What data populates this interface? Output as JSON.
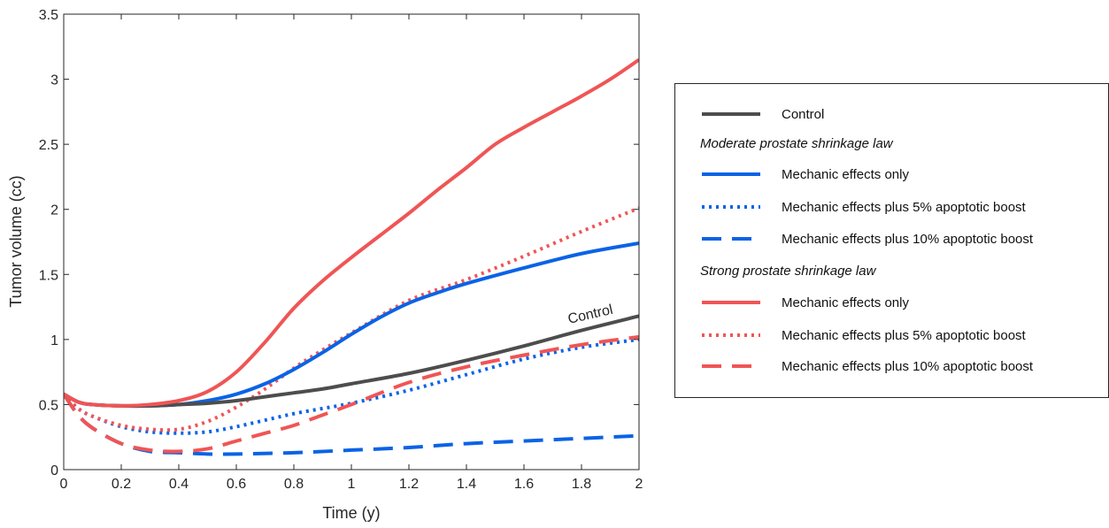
{
  "colors": {
    "control": "#4d4d4d",
    "moderate": "#0a63e6",
    "strong": "#f05555",
    "axis": "#262626"
  },
  "chart_data": {
    "type": "line",
    "xlabel": "Time (y)",
    "ylabel": "Tumor volume (cc)",
    "xlim": [
      0,
      2
    ],
    "ylim": [
      0,
      3.5
    ],
    "xticks": [
      "0",
      "0.2",
      "0.4",
      "0.6",
      "0.8",
      "1",
      "1.2",
      "1.4",
      "1.6",
      "1.8",
      "2"
    ],
    "yticks": [
      "0",
      "0.5",
      "1",
      "1.5",
      "2",
      "2.5",
      "3",
      "3.5"
    ],
    "grid": false,
    "legend_position": "right outside",
    "annotation": "Control",
    "groups": [
      {
        "heading": "",
        "series": [
          {
            "name": "Control",
            "style": "solid",
            "color": "control",
            "x": [
              0,
              0.05,
              0.1,
              0.2,
              0.3,
              0.4,
              0.5,
              0.6,
              0.7,
              0.8,
              0.9,
              1.0,
              1.2,
              1.4,
              1.6,
              1.8,
              2.0
            ],
            "y": [
              0.58,
              0.52,
              0.5,
              0.49,
              0.49,
              0.5,
              0.51,
              0.53,
              0.56,
              0.59,
              0.62,
              0.66,
              0.74,
              0.84,
              0.95,
              1.07,
              1.18
            ]
          }
        ]
      },
      {
        "heading": "Moderate prostate shrinkage law",
        "series": [
          {
            "name": "Mechanic effects only",
            "style": "solid",
            "color": "moderate",
            "x": [
              0,
              0.05,
              0.1,
              0.2,
              0.3,
              0.4,
              0.5,
              0.6,
              0.7,
              0.8,
              0.9,
              1.0,
              1.1,
              1.2,
              1.3,
              1.4,
              1.6,
              1.8,
              2.0
            ],
            "y": [
              0.58,
              0.52,
              0.5,
              0.49,
              0.49,
              0.5,
              0.53,
              0.58,
              0.66,
              0.77,
              0.9,
              1.04,
              1.17,
              1.28,
              1.36,
              1.43,
              1.55,
              1.66,
              1.74
            ]
          },
          {
            "name": "Mechanic effects plus 5% apoptotic boost",
            "style": "dotted",
            "color": "moderate",
            "x": [
              0,
              0.05,
              0.1,
              0.2,
              0.3,
              0.4,
              0.5,
              0.6,
              0.7,
              0.8,
              0.9,
              1.0,
              1.2,
              1.4,
              1.6,
              1.8,
              2.0
            ],
            "y": [
              0.58,
              0.47,
              0.41,
              0.33,
              0.29,
              0.28,
              0.29,
              0.33,
              0.38,
              0.43,
              0.47,
              0.51,
              0.61,
              0.73,
              0.85,
              0.94,
              1.0
            ]
          },
          {
            "name": "Mechanic effects plus 10% apoptotic boost",
            "style": "dashed",
            "color": "moderate",
            "x": [
              0,
              0.05,
              0.1,
              0.2,
              0.3,
              0.4,
              0.5,
              0.6,
              0.8,
              1.0,
              1.2,
              1.4,
              1.6,
              1.8,
              2.0
            ],
            "y": [
              0.58,
              0.42,
              0.32,
              0.2,
              0.14,
              0.13,
              0.12,
              0.12,
              0.13,
              0.15,
              0.17,
              0.2,
              0.22,
              0.24,
              0.26
            ]
          }
        ]
      },
      {
        "heading": "Strong prostate shrinkage law",
        "series": [
          {
            "name": "Mechanic effects only",
            "style": "solid",
            "color": "strong",
            "x": [
              0,
              0.05,
              0.1,
              0.2,
              0.3,
              0.4,
              0.5,
              0.6,
              0.7,
              0.8,
              0.9,
              1.0,
              1.1,
              1.2,
              1.3,
              1.4,
              1.5,
              1.6,
              1.7,
              1.8,
              1.9,
              2.0
            ],
            "y": [
              0.58,
              0.52,
              0.5,
              0.49,
              0.5,
              0.53,
              0.6,
              0.75,
              0.98,
              1.24,
              1.45,
              1.63,
              1.8,
              1.97,
              2.15,
              2.32,
              2.5,
              2.63,
              2.75,
              2.87,
              3.0,
              3.15
            ]
          },
          {
            "name": "Mechanic effects plus 5% apoptotic boost",
            "style": "dotted",
            "color": "strong",
            "x": [
              0,
              0.05,
              0.1,
              0.2,
              0.3,
              0.4,
              0.5,
              0.6,
              0.7,
              0.8,
              0.9,
              1.0,
              1.2,
              1.4,
              1.6,
              1.8,
              2.0
            ],
            "y": [
              0.58,
              0.47,
              0.41,
              0.34,
              0.31,
              0.31,
              0.37,
              0.48,
              0.62,
              0.78,
              0.92,
              1.05,
              1.3,
              1.46,
              1.64,
              1.83,
              2.01
            ]
          },
          {
            "name": "Mechanic effects plus 10% apoptotic boost",
            "style": "dashed",
            "color": "strong",
            "x": [
              0,
              0.05,
              0.1,
              0.2,
              0.3,
              0.4,
              0.5,
              0.6,
              0.7,
              0.8,
              0.9,
              1.0,
              1.2,
              1.4,
              1.6,
              1.8,
              2.0
            ],
            "y": [
              0.58,
              0.42,
              0.32,
              0.2,
              0.15,
              0.14,
              0.16,
              0.22,
              0.28,
              0.34,
              0.42,
              0.5,
              0.67,
              0.79,
              0.88,
              0.96,
              1.02
            ]
          }
        ]
      }
    ]
  }
}
